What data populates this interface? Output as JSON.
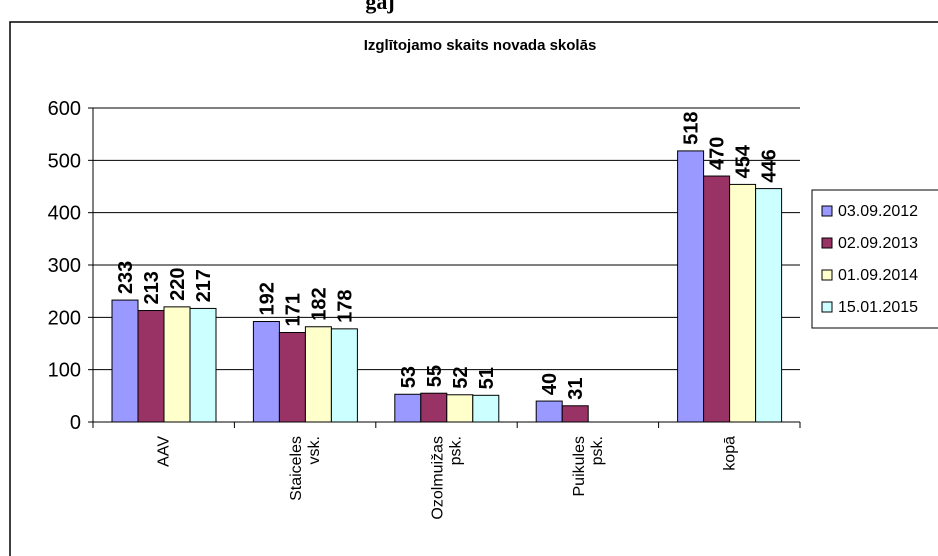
{
  "header_text": "gaj",
  "chart_data": {
    "type": "bar",
    "title": "Izglītojamo skaits novada skolās",
    "xlabel": "",
    "ylabel": "",
    "ylim": [
      0,
      600
    ],
    "yticks": [
      0,
      100,
      200,
      300,
      400,
      500,
      600
    ],
    "grid": true,
    "legend_position": "right",
    "categories": [
      [
        "AAV"
      ],
      [
        "Staiceles",
        "vsk."
      ],
      [
        "Ozolmuižas",
        "psk."
      ],
      [
        "Puikules",
        "psk."
      ],
      [
        "kopā"
      ]
    ],
    "series": [
      {
        "name": "03.09.2012",
        "color": "#9999ff",
        "values": [
          233,
          192,
          53,
          40,
          518
        ]
      },
      {
        "name": "02.09.2013",
        "color": "#993366",
        "values": [
          213,
          171,
          55,
          31,
          470
        ]
      },
      {
        "name": "01.09.2014",
        "color": "#ffffcc",
        "values": [
          220,
          182,
          52,
          null,
          454
        ]
      },
      {
        "name": "15.01.2015",
        "color": "#ccffff",
        "values": [
          217,
          178,
          51,
          null,
          446
        ]
      }
    ]
  }
}
